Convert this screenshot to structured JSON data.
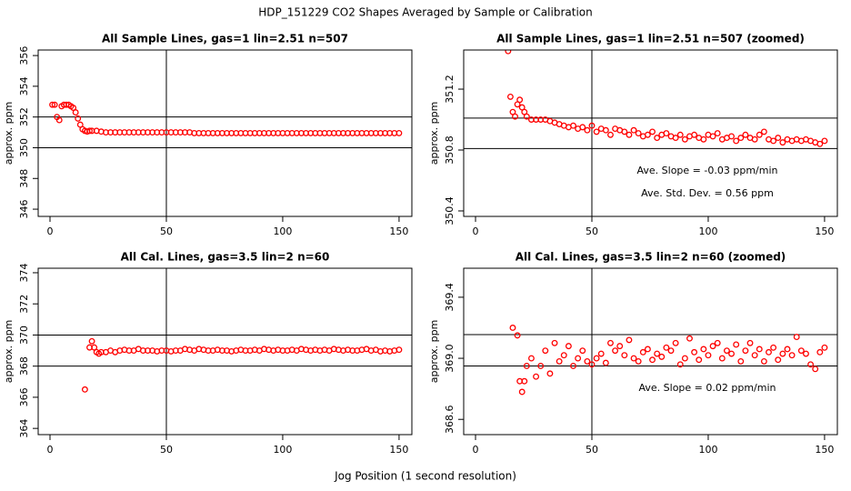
{
  "title": "HDP_151229  CO2 Shapes Averaged by Sample or Calibration",
  "xlabel": "Jog Position (1 second resolution)",
  "chart_data": [
    {
      "type": "scatter",
      "title": "All Sample Lines, gas=1 lin=2.51 n=507",
      "ylabel": "approx. ppm",
      "color": "#ff0000",
      "xlim": [
        -5.08,
        155.5
      ],
      "xticks": [
        0,
        50,
        100,
        150
      ],
      "ylim": [
        345.53,
        356.36
      ],
      "yticks": [
        346,
        348,
        350,
        352,
        354,
        356
      ],
      "hlines": [
        352,
        350
      ],
      "vlines": [
        50
      ],
      "x": [
        1,
        2,
        3,
        4,
        5,
        6,
        7,
        8,
        9,
        10,
        11,
        12,
        13,
        14,
        15,
        16,
        17,
        18,
        20,
        22,
        24,
        26,
        28,
        30,
        32,
        34,
        36,
        38,
        40,
        42,
        44,
        46,
        48,
        50,
        52,
        54,
        56,
        58,
        60,
        62,
        64,
        66,
        68,
        70,
        72,
        74,
        76,
        78,
        80,
        82,
        84,
        86,
        88,
        90,
        92,
        94,
        96,
        98,
        100,
        102,
        104,
        106,
        108,
        110,
        112,
        114,
        116,
        118,
        120,
        122,
        124,
        126,
        128,
        130,
        132,
        134,
        136,
        138,
        140,
        142,
        144,
        146,
        148,
        150
      ],
      "values": [
        352.8,
        352.8,
        352.0,
        351.8,
        352.7,
        352.8,
        352.8,
        352.8,
        352.7,
        352.6,
        352.3,
        351.9,
        351.5,
        351.2,
        351.1,
        351.05,
        351.1,
        351.1,
        351.1,
        351.05,
        351.0,
        351.0,
        351.0,
        351.0,
        351.0,
        351.0,
        351.0,
        351.0,
        351.0,
        351.0,
        351.0,
        351.0,
        351.0,
        351.0,
        351.0,
        351.0,
        351.0,
        351.0,
        351.0,
        350.95,
        350.95,
        350.95,
        350.95,
        350.95,
        350.95,
        350.95,
        350.95,
        350.95,
        350.95,
        350.95,
        350.95,
        350.95,
        350.95,
        350.95,
        350.95,
        350.95,
        350.95,
        350.95,
        350.95,
        350.95,
        350.95,
        350.95,
        350.95,
        350.95,
        350.95,
        350.95,
        350.95,
        350.95,
        350.95,
        350.95,
        350.95,
        350.95,
        350.95,
        350.95,
        350.95,
        350.95,
        350.95,
        350.95,
        350.95,
        350.95,
        350.95,
        350.95,
        350.95,
        350.95
      ]
    },
    {
      "type": "scatter",
      "title": "All Sample Lines, gas=1 lin=2.51 n=507 (zoomed)",
      "ylabel": "approx. ppm",
      "color": "#ff0000",
      "xlim": [
        -5.09,
        155.5
      ],
      "xticks": [
        0,
        50,
        100,
        150
      ],
      "ylim": [
        350.364,
        351.457
      ],
      "yticks": [
        350.4,
        350.8,
        351.2
      ],
      "hlines": [
        351.01,
        350.81
      ],
      "vlines": [
        50
      ],
      "annotations": [
        "Ave. Slope =  -0.03  ppm/min",
        "Ave. Std. Dev. =  0.56  ppm"
      ],
      "x": [
        14,
        15,
        16,
        17,
        18,
        19,
        20,
        21,
        22,
        24,
        26,
        28,
        30,
        32,
        34,
        36,
        38,
        40,
        42,
        44,
        46,
        48,
        50,
        52,
        54,
        56,
        58,
        60,
        62,
        64,
        66,
        68,
        70,
        72,
        74,
        76,
        78,
        80,
        82,
        84,
        86,
        88,
        90,
        92,
        94,
        96,
        98,
        100,
        102,
        104,
        106,
        108,
        110,
        112,
        114,
        116,
        118,
        120,
        122,
        124,
        126,
        128,
        130,
        132,
        134,
        136,
        138,
        140,
        142,
        144,
        146,
        148,
        150
      ],
      "values": [
        351.45,
        351.15,
        351.05,
        351.02,
        351.1,
        351.13,
        351.08,
        351.05,
        351.02,
        351.0,
        351.0,
        351.0,
        351.0,
        350.99,
        350.98,
        350.97,
        350.96,
        350.95,
        350.96,
        350.94,
        350.95,
        350.93,
        350.96,
        350.92,
        350.94,
        350.93,
        350.9,
        350.94,
        350.93,
        350.92,
        350.9,
        350.93,
        350.91,
        350.89,
        350.9,
        350.92,
        350.88,
        350.9,
        350.91,
        350.89,
        350.88,
        350.9,
        350.87,
        350.89,
        350.9,
        350.88,
        350.87,
        350.9,
        350.89,
        350.91,
        350.87,
        350.88,
        350.89,
        350.86,
        350.88,
        350.9,
        350.88,
        350.87,
        350.9,
        350.92,
        350.87,
        350.86,
        350.88,
        350.85,
        350.87,
        350.86,
        350.87,
        350.86,
        350.87,
        350.86,
        350.85,
        350.84,
        350.86
      ]
    },
    {
      "type": "scatter",
      "title": "All Cal. Lines, gas=3.5 lin=2 n=60",
      "ylabel": "approx. ppm",
      "color": "#ff0000",
      "xlim": [
        -5.08,
        155.5
      ],
      "xticks": [
        0,
        50,
        100,
        150
      ],
      "ylim": [
        363.6,
        374.29
      ],
      "yticks": [
        364,
        366,
        368,
        370,
        372,
        374
      ],
      "hlines": [
        370,
        368
      ],
      "vlines": [
        50
      ],
      "x": [
        15,
        17,
        18,
        19,
        20,
        21,
        22,
        24,
        26,
        28,
        30,
        32,
        34,
        36,
        38,
        40,
        42,
        44,
        46,
        48,
        50,
        52,
        54,
        56,
        58,
        60,
        62,
        64,
        66,
        68,
        70,
        72,
        74,
        76,
        78,
        80,
        82,
        84,
        86,
        88,
        90,
        92,
        94,
        96,
        98,
        100,
        102,
        104,
        106,
        108,
        110,
        112,
        114,
        116,
        118,
        120,
        122,
        124,
        126,
        128,
        130,
        132,
        134,
        136,
        138,
        140,
        142,
        144,
        146,
        148,
        150
      ],
      "values": [
        366.5,
        369.2,
        369.6,
        369.2,
        368.9,
        368.8,
        368.9,
        368.9,
        369.0,
        368.9,
        369.0,
        369.05,
        369.0,
        369.0,
        369.1,
        369.0,
        369.0,
        369.0,
        368.95,
        369.0,
        369.0,
        368.95,
        369.0,
        369.0,
        369.1,
        369.05,
        369.0,
        369.1,
        369.05,
        369.0,
        369.0,
        369.05,
        369.0,
        369.0,
        368.95,
        369.0,
        369.05,
        369.0,
        369.0,
        369.05,
        369.0,
        369.1,
        369.05,
        369.0,
        369.05,
        369.0,
        369.0,
        369.05,
        369.0,
        369.1,
        369.05,
        369.0,
        369.05,
        369.0,
        369.05,
        369.0,
        369.1,
        369.05,
        369.0,
        369.05,
        369.0,
        369.0,
        369.05,
        369.1,
        369.0,
        369.05,
        368.95,
        369.0,
        368.95,
        369.0,
        369.05
      ]
    },
    {
      "type": "scatter",
      "title": "All Cal. Lines, gas=3.5 lin=2 n=60 (zoomed)",
      "ylabel": "approx. ppm",
      "color": "#ff0000",
      "xlim": [
        -5.09,
        155.5
      ],
      "xticks": [
        0,
        50,
        100,
        150
      ],
      "ylim": [
        368.5,
        369.59
      ],
      "yticks": [
        368.6,
        {
          "value": 369,
          "label": "369.0"
        },
        369.4
      ],
      "hlines": [
        369.155,
        368.95
      ],
      "vlines": [
        50
      ],
      "annotations": [
        "Ave. Slope =  0.02  ppm/min"
      ],
      "x": [
        16,
        18,
        19,
        20,
        21,
        22,
        24,
        26,
        28,
        30,
        32,
        34,
        36,
        38,
        40,
        42,
        44,
        46,
        48,
        50,
        52,
        54,
        56,
        58,
        60,
        62,
        64,
        66,
        68,
        70,
        72,
        74,
        76,
        78,
        80,
        82,
        84,
        86,
        88,
        90,
        92,
        94,
        96,
        98,
        100,
        102,
        104,
        106,
        108,
        110,
        112,
        114,
        116,
        118,
        120,
        122,
        124,
        126,
        128,
        130,
        132,
        134,
        136,
        138,
        140,
        142,
        144,
        146,
        148,
        150
      ],
      "values": [
        369.2,
        369.15,
        368.85,
        368.78,
        368.85,
        368.95,
        369.0,
        368.88,
        368.95,
        369.05,
        368.9,
        369.1,
        368.98,
        369.02,
        369.08,
        368.95,
        369.0,
        369.05,
        368.98,
        368.96,
        369.0,
        369.03,
        368.97,
        369.1,
        369.05,
        369.08,
        369.02,
        369.12,
        369.0,
        368.98,
        369.04,
        369.06,
        368.99,
        369.03,
        369.01,
        369.07,
        369.05,
        369.1,
        368.96,
        369.0,
        369.13,
        369.04,
        368.99,
        369.06,
        369.02,
        369.08,
        369.1,
        369.0,
        369.05,
        369.03,
        369.09,
        368.98,
        369.05,
        369.1,
        369.02,
        369.06,
        368.98,
        369.04,
        369.07,
        368.99,
        369.03,
        369.06,
        369.02,
        369.14,
        369.05,
        369.03,
        368.96,
        368.93,
        369.04,
        369.07
      ]
    }
  ]
}
